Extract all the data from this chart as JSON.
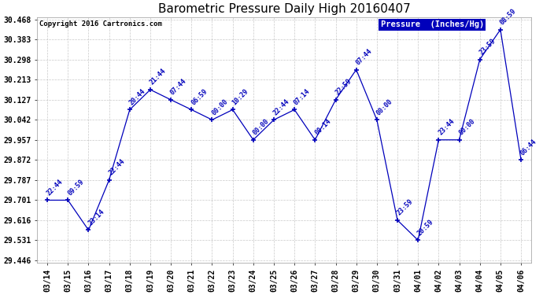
{
  "title": "Barometric Pressure Daily High 20160407",
  "copyright": "Copyright 2016 Cartronics.com",
  "legend_label": "Pressure  (Inches/Hg)",
  "x_labels": [
    "03/14",
    "03/15",
    "03/16",
    "03/17",
    "03/18",
    "03/19",
    "03/20",
    "03/21",
    "03/22",
    "03/23",
    "03/24",
    "03/25",
    "03/26",
    "03/27",
    "03/28",
    "03/29",
    "03/30",
    "03/31",
    "04/01",
    "04/02",
    "04/03",
    "04/04",
    "04/05",
    "04/06"
  ],
  "y_values": [
    29.701,
    29.701,
    29.574,
    29.787,
    30.085,
    30.17,
    30.127,
    30.085,
    30.042,
    30.085,
    29.957,
    30.042,
    30.085,
    29.957,
    30.127,
    30.255,
    30.042,
    29.616,
    29.531,
    29.957,
    29.957,
    30.298,
    30.425,
    29.872
  ],
  "time_labels": [
    "22:44",
    "09:59",
    "23:14",
    "22:44",
    "20:44",
    "21:44",
    "07:44",
    "06:59",
    "00:00",
    "10:29",
    "00:00",
    "22:44",
    "07:14",
    "00:14",
    "22:59",
    "07:44",
    "00:00",
    "23:59",
    "20:59",
    "23:44",
    "00:00",
    "23:59",
    "08:59",
    "06:44"
  ],
  "line_color": "#0000bb",
  "background_color": "#ffffff",
  "grid_color": "#bbbbbb",
  "legend_bg": "#0000bb",
  "legend_fg": "#ffffff",
  "ylim_min": 29.446,
  "ylim_max": 30.468,
  "yticks": [
    29.446,
    29.531,
    29.616,
    29.701,
    29.787,
    29.872,
    29.957,
    30.042,
    30.127,
    30.213,
    30.298,
    30.383,
    30.468
  ],
  "title_fontsize": 11,
  "tick_fontsize": 7,
  "label_fontsize": 7,
  "annot_fontsize": 6
}
